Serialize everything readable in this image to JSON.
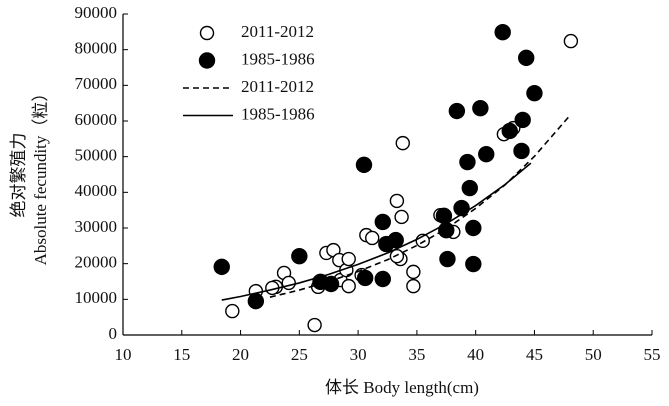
{
  "chart_data": {
    "type": "scatter",
    "x_label": "体长 Body length(cm)",
    "y_label": [
      "绝对繁殖力",
      "Absolute fecundity（粒）"
    ],
    "xlim": [
      10,
      55
    ],
    "xticks": [
      10,
      15,
      20,
      25,
      30,
      35,
      40,
      45,
      50,
      55
    ],
    "ylim": [
      0,
      90000
    ],
    "yticks": [
      0,
      10000,
      20000,
      30000,
      40000,
      50000,
      60000,
      70000,
      80000,
      90000
    ],
    "legend": "upper left",
    "series": [
      {
        "name": "2011-2012",
        "type": "scatter",
        "marker": "open",
        "color": "#000000",
        "x": [
          19.3,
          21.3,
          23.0,
          23.7,
          24.1,
          22.7,
          26.3,
          26.6,
          27.3,
          27.9,
          28.4,
          28.5,
          29.0,
          29.2,
          29.2,
          30.3,
          30.7,
          31.2,
          33.3,
          33.6,
          33.3,
          33.7,
          33.8,
          34.7,
          34.7,
          35.5,
          37.0,
          38.1,
          42.4,
          43.2,
          48.1
        ],
        "values": [
          6700,
          12300,
          13500,
          17400,
          14600,
          13200,
          2800,
          13500,
          23000,
          23800,
          21000,
          15400,
          18200,
          21300,
          13700,
          16800,
          28000,
          27200,
          37600,
          21300,
          22100,
          33100,
          53800,
          17700,
          13700,
          26400,
          33600,
          28900,
          56300,
          58000,
          82400
        ]
      },
      {
        "name": "1985-1986",
        "type": "scatter",
        "marker": "filled",
        "color": "#000000",
        "x": [
          18.4,
          21.3,
          25.0,
          26.8,
          27.7,
          30.5,
          30.6,
          32.1,
          32.1,
          32.4,
          33.2,
          37.3,
          37.5,
          37.6,
          38.4,
          38.8,
          39.3,
          39.5,
          39.8,
          39.8,
          40.4,
          40.9,
          42.3,
          42.9,
          44.0,
          43.9,
          44.3,
          45.0
        ],
        "values": [
          19100,
          9500,
          22100,
          14900,
          14300,
          47700,
          16000,
          15700,
          31700,
          25500,
          26600,
          33400,
          29400,
          21300,
          62800,
          35600,
          48500,
          41200,
          30000,
          19900,
          63600,
          50700,
          84900,
          57200,
          60300,
          51600,
          77700,
          67800
        ]
      },
      {
        "name": "2011-2012",
        "type": "line",
        "dash": true,
        "color": "#000000",
        "x": [
          22.5,
          25,
          27.5,
          30,
          32.5,
          35,
          37.5,
          40,
          42.5,
          45,
          47.9
        ],
        "values": [
          10600,
          12600,
          15000,
          17800,
          21100,
          25100,
          29800,
          35500,
          42100,
          50100,
          61100
        ]
      },
      {
        "name": "1985-1986",
        "type": "line",
        "dash": false,
        "color": "#000000",
        "x": [
          18.4,
          20,
          22.5,
          25,
          27.5,
          30,
          32.5,
          35,
          37.5,
          40,
          42.5,
          44.7
        ],
        "values": [
          9800,
          10800,
          12600,
          14600,
          17000,
          19800,
          23000,
          26800,
          31200,
          36300,
          42200,
          48200
        ]
      }
    ]
  }
}
